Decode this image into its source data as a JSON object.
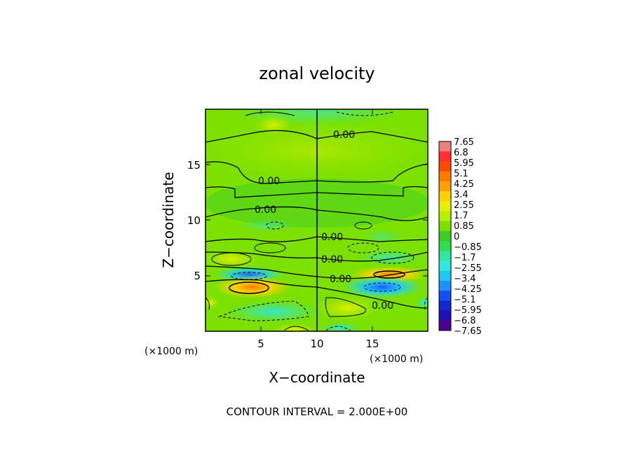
{
  "chart_data": {
    "type": "heatmap",
    "title": "zonal velocity",
    "xlabel": "X−coordinate",
    "ylabel": "Z−coordinate",
    "x_unit_left": "(×1000 m)",
    "x_unit_right": "(×1000 m)",
    "footer": "CONTOUR INTERVAL = 2.000E+00",
    "xlim": [
      0,
      20
    ],
    "ylim": [
      0,
      20
    ],
    "x_ticks": [
      "5",
      "10",
      "15"
    ],
    "y_ticks": [
      "5",
      "10",
      "15"
    ],
    "colorbar_labels": [
      "7.65",
      "6.8",
      "5.95",
      "5.1",
      "4.25",
      "3.4",
      "2.55",
      "1.7",
      "0.85",
      "0",
      "−0.85",
      "−1.7",
      "−2.55",
      "−3.4",
      "−4.25",
      "−5.1",
      "−5.95",
      "−6.8",
      "−7.65"
    ],
    "colorbar_colors": [
      "#f08080",
      "#ff3030",
      "#ff4a00",
      "#ff7a00",
      "#ffa000",
      "#ffd000",
      "#e6f000",
      "#b4f000",
      "#7ce000",
      "#3ccc28",
      "#30dc50",
      "#30e6a0",
      "#30e8e0",
      "#20c8f0",
      "#1e90ff",
      "#1450f0",
      "#1428d0",
      "#2010b0",
      "#4b0090"
    ],
    "contour_labels": [
      "0.00",
      "0.00",
      "0.00",
      "0.00",
      "0.00",
      "0.00",
      "0.00"
    ]
  }
}
